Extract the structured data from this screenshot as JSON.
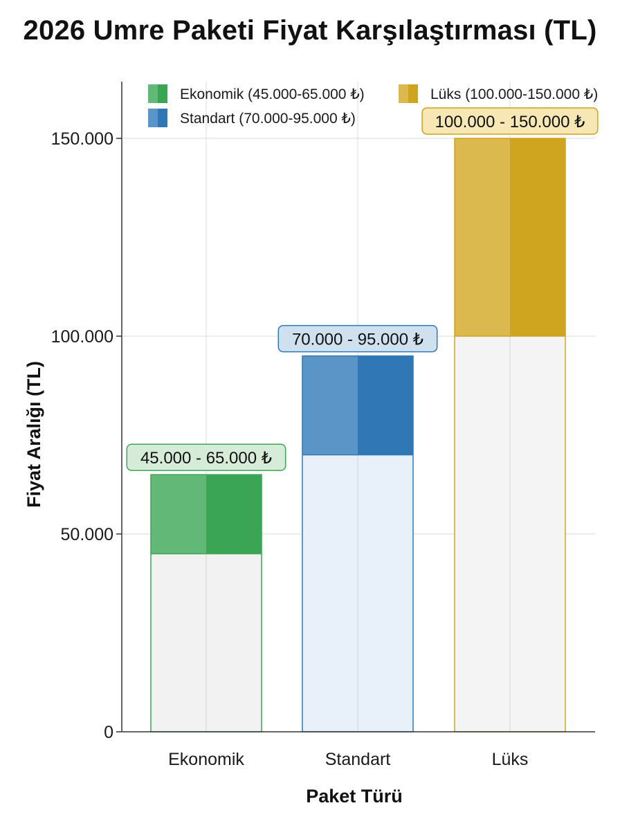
{
  "chart_data": {
    "type": "bar",
    "title": "2026 Umre Paketi Fiyat Karşılaştırması (TL)",
    "xlabel": "Paket Türü",
    "ylabel": "Fiyat Aralığı (TL)",
    "ylim": [
      0,
      165000
    ],
    "yticks": [
      0,
      50000,
      100000,
      150000
    ],
    "ytick_labels": [
      "0",
      "50.000",
      "100.000",
      "150.000"
    ],
    "grid": true,
    "legend_position": "top",
    "categories": [
      "Ekonomik",
      "Standart",
      "Lüks"
    ],
    "series": [
      {
        "name": "Ekonomik (45.000-65.000 ₺)",
        "category": "Ekonomik",
        "min": 45000,
        "max": 65000,
        "label": "45.000 - 65.000 ₺",
        "color": "#3aa655",
        "light_color": "#62b876",
        "fill_color": "#f2f2f2",
        "label_bg": "#d6ecd8"
      },
      {
        "name": "Standart (70.000-95.000 ₺)",
        "category": "Standart",
        "min": 70000,
        "max": 95000,
        "label": "70.000 - 95.000 ₺",
        "color": "#2f78b5",
        "light_color": "#5b95c7",
        "fill_color": "#e8f1f9",
        "label_bg": "#cfe0ef"
      },
      {
        "name": "Lüks (100.000-150.000 ₺)",
        "category": "Lüks",
        "min": 100000,
        "max": 150000,
        "label": "100.000 - 150.000 ₺",
        "color": "#cfa41f",
        "light_color": "#dcb94f",
        "fill_color": "#f4f4f4",
        "label_bg": "#f6e7b5"
      }
    ]
  }
}
